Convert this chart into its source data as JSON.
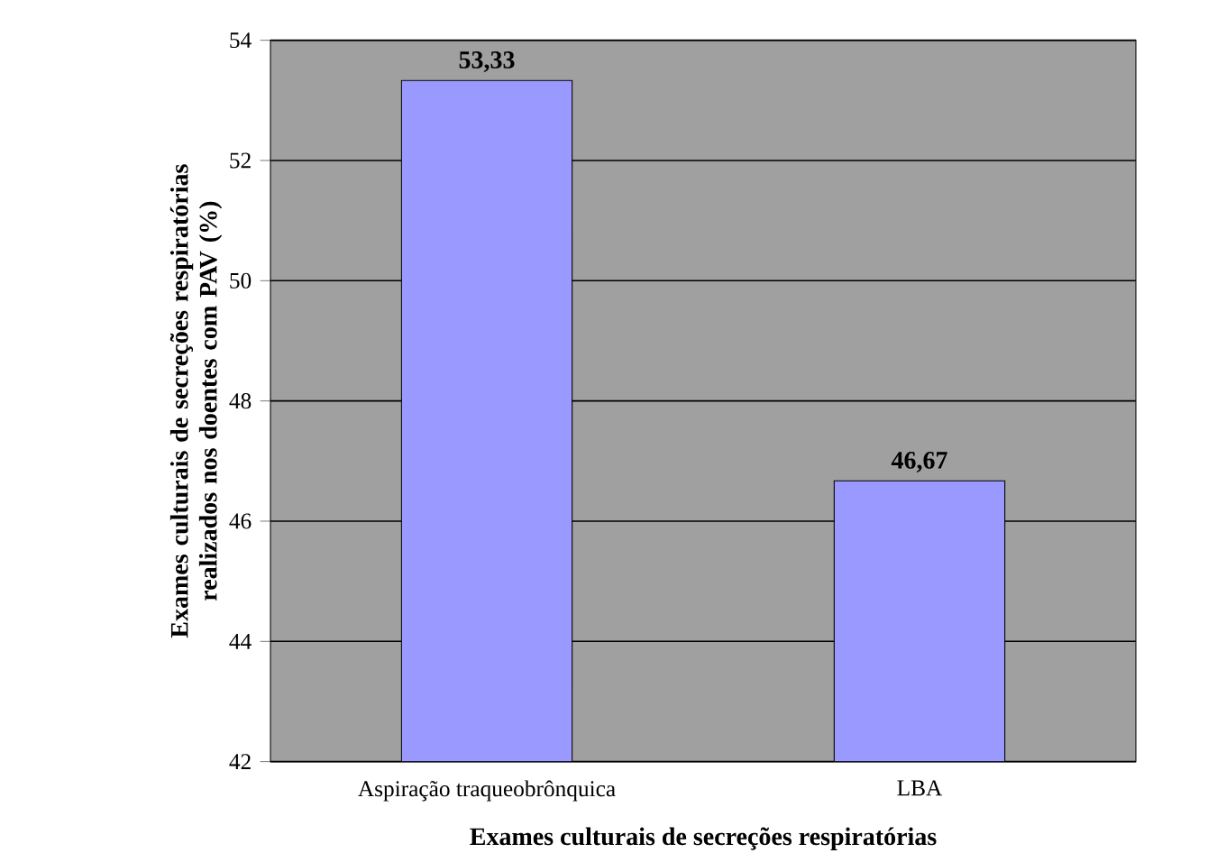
{
  "chart_data": {
    "type": "bar",
    "xlabel": "Exames culturais de secreções respiratórias",
    "ylabel": "Exames culturais de secreções respiratórias realizados nos doentes com PAV (%)",
    "categories": [
      "Aspiração traqueobrônquica",
      "LBA"
    ],
    "values": [
      53.33,
      46.67
    ],
    "value_labels": [
      "53,33",
      "46,67"
    ],
    "color": "#9999ff",
    "ylim": [
      42,
      54
    ],
    "yticks": [
      42,
      44,
      46,
      48,
      50,
      52,
      54
    ],
    "grid": "y"
  }
}
